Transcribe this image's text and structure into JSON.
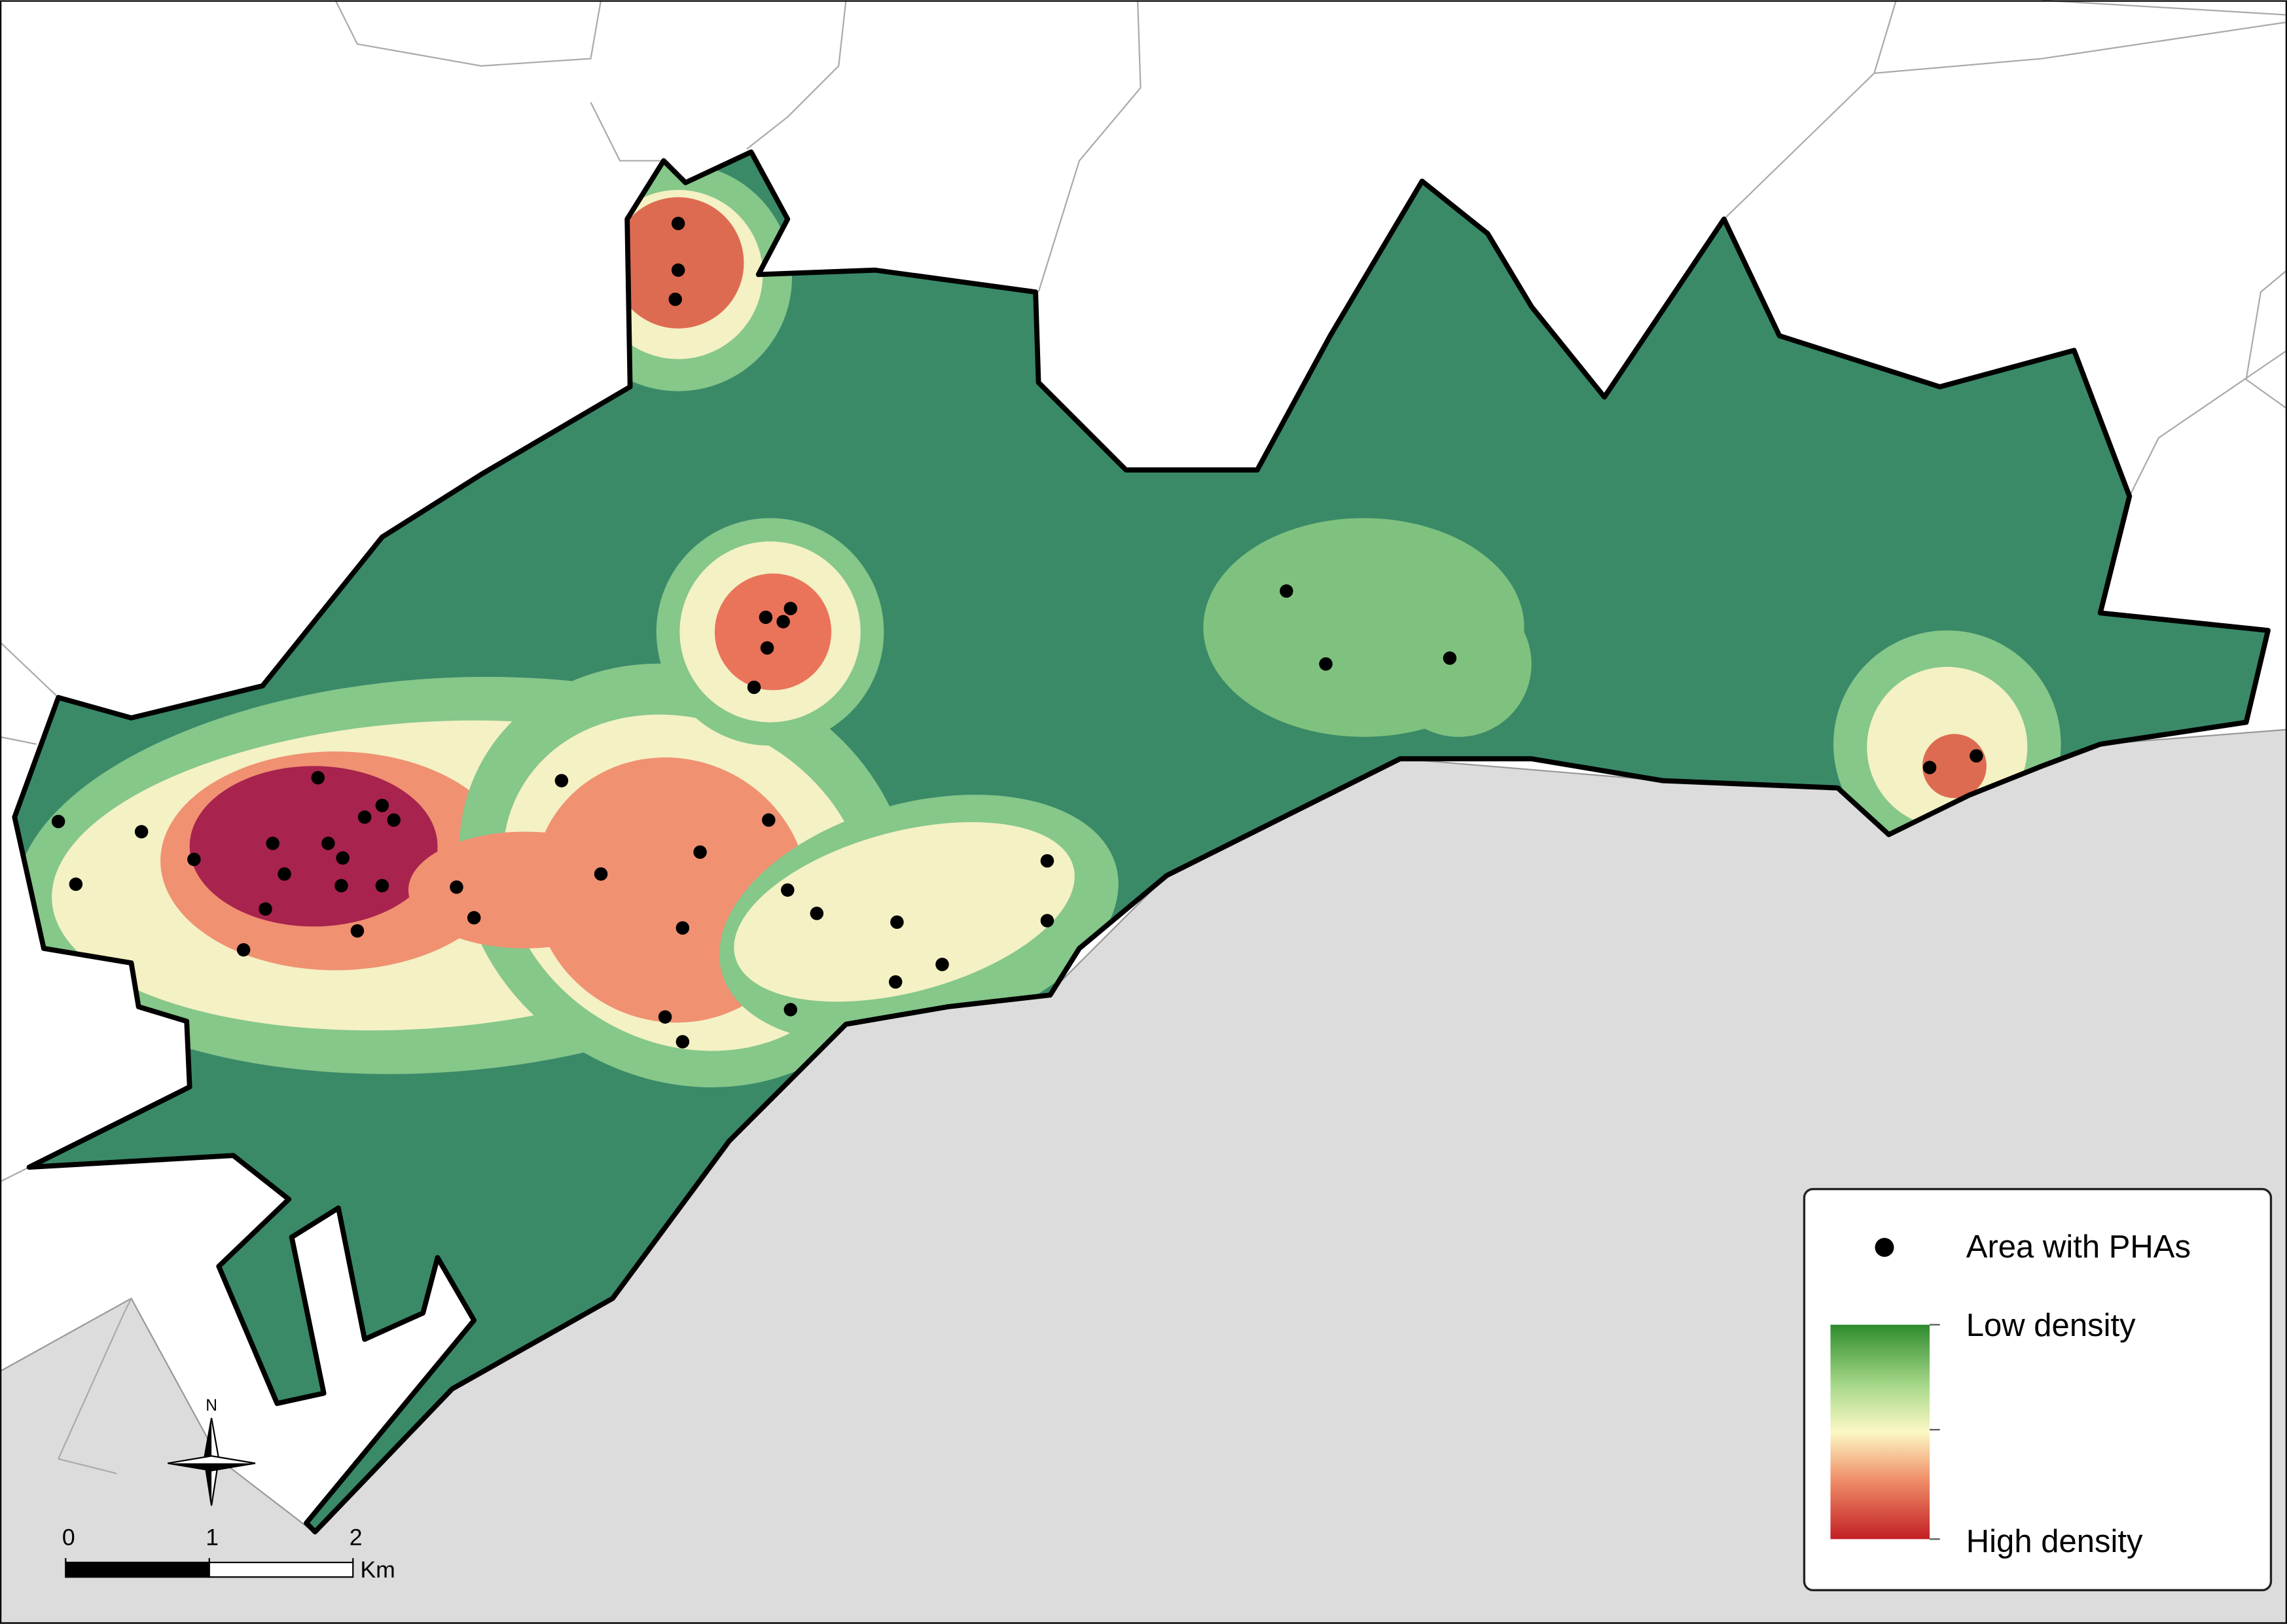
{
  "legend": {
    "points": "Area with PHAs",
    "low": "Low density",
    "high": "High density"
  },
  "north_arrow": "N",
  "scale_bar": {
    "ticks": [
      0,
      1,
      2
    ],
    "unit": "Km"
  }
}
